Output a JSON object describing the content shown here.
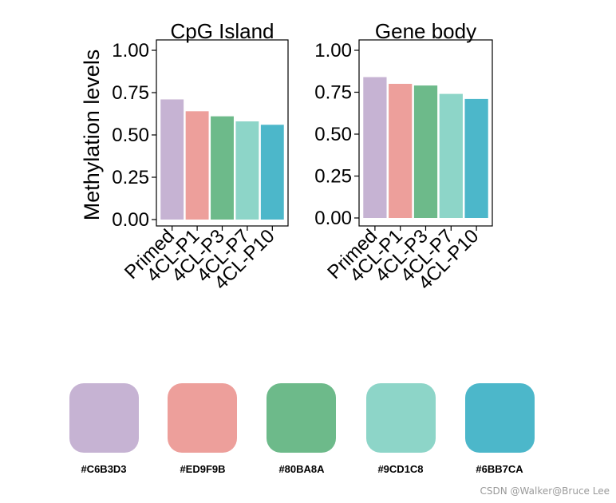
{
  "chart_data": [
    {
      "type": "bar",
      "title": "CpG Island",
      "ylabel": "Methylation levels",
      "xlabel": "",
      "categories": [
        "Primed",
        "4CL-P1",
        "4CL-P3",
        "4CL-P7",
        "4CL-P10"
      ],
      "values": [
        0.71,
        0.64,
        0.61,
        0.58,
        0.56
      ],
      "ylim": [
        0,
        1
      ],
      "yticks": [
        "0.00",
        "0.25",
        "0.50",
        "0.75",
        "1.00"
      ],
      "colors": [
        "#C6B3D3",
        "#ED9F9B",
        "#6DBA8A",
        "#8DD5C8",
        "#4CB7CA"
      ]
    },
    {
      "type": "bar",
      "title": "Gene body",
      "ylabel": "",
      "xlabel": "",
      "categories": [
        "Primed",
        "4CL-P1",
        "4CL-P3",
        "4CL-P7",
        "4CL-P10"
      ],
      "values": [
        0.84,
        0.8,
        0.79,
        0.74,
        0.71
      ],
      "ylim": [
        0,
        1
      ],
      "yticks": [
        "0.00",
        "0.25",
        "0.50",
        "0.75",
        "1.00"
      ],
      "colors": [
        "#C6B3D3",
        "#ED9F9B",
        "#6DBA8A",
        "#8DD5C8",
        "#4CB7CA"
      ]
    }
  ],
  "palette": [
    {
      "label": "#C6B3D3",
      "color": "#C6B3D3"
    },
    {
      "label": "#ED9F9B",
      "color": "#ED9F9B"
    },
    {
      "label": "#80BA8A",
      "color": "#6DBA8A"
    },
    {
      "label": "#9CD1C8",
      "color": "#8DD5C8"
    },
    {
      "label": "#6BB7CA",
      "color": "#4CB7CA"
    }
  ],
  "watermark": "CSDN @Walker@Bruce Lee"
}
